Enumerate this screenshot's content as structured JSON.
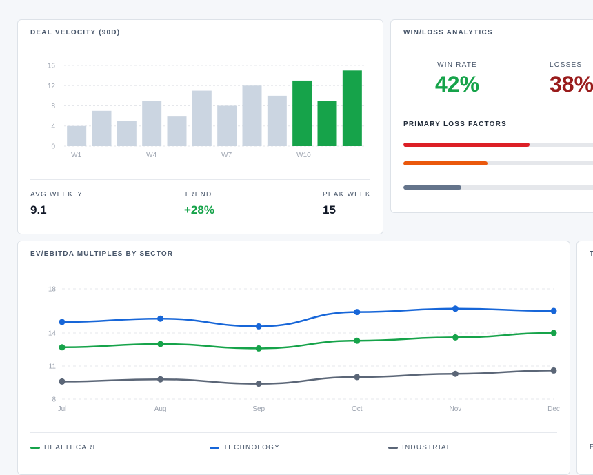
{
  "deal_velocity": {
    "title": "DEAL VELOCITY (90D)",
    "stats": {
      "avg_weekly_label": "AVG WEEKLY",
      "avg_weekly_value": "9.1",
      "trend_label": "TREND",
      "trend_value": "+28%",
      "peak_week_label": "PEAK WEEK",
      "peak_week_value": "15"
    }
  },
  "win_loss": {
    "title": "WIN/LOSS ANALYTICS",
    "win_rate_label": "WIN RATE",
    "win_rate_value": "42%",
    "losses_label": "LOSSES",
    "losses_value": "38%",
    "factors_title": "PRIMARY LOSS FACTORS",
    "factors": [
      {
        "fill_fraction": 0.63,
        "color": "#dc1f26"
      },
      {
        "fill_fraction": 0.42,
        "color": "#ea580c"
      },
      {
        "fill_fraction": 0.29,
        "color": "#64748b"
      }
    ]
  },
  "ev_ebitda": {
    "title": "EV/EBITDA MULTIPLES BY SECTOR",
    "legend": {
      "healthcare": "HEALTHCARE",
      "technology": "TECHNOLOGY",
      "industrial": "INDUSTRIAL"
    }
  },
  "right_edge_card": {
    "header_letter": "T",
    "footer_letter": "F"
  },
  "colors": {
    "accent_green": "#16a34a",
    "accent_red": "#991b1b",
    "bar_gray": "#cbd5e1",
    "technology": "#1766d8",
    "healthcare": "#16a34a",
    "industrial": "#5b6677"
  },
  "chart_data": [
    {
      "type": "bar",
      "categories": [
        "W1",
        "W2",
        "W3",
        "W4",
        "W5",
        "W6",
        "W7",
        "W8",
        "W9",
        "W10",
        "W11",
        "W12"
      ],
      "tick_labels": {
        "W1": "W1",
        "W4": "W4",
        "W7": "W7",
        "W10": "W10"
      },
      "values": [
        4,
        7,
        5,
        9,
        6,
        11,
        8,
        12,
        10,
        13,
        9,
        15
      ],
      "highlight_from_index": 9,
      "y_ticks": [
        "0",
        "4",
        "8",
        "12",
        "16"
      ],
      "ylim": [
        0,
        16
      ],
      "grid": true
    },
    {
      "type": "line",
      "x": [
        "Jul",
        "Aug",
        "Sep",
        "Oct",
        "Nov",
        "Dec"
      ],
      "y_ticks": [
        "8",
        "11",
        "14",
        "18"
      ],
      "ylim": [
        8,
        18
      ],
      "grid": true,
      "legend_placement": "bottom",
      "series": [
        {
          "name": "TECHNOLOGY",
          "color": "#1766d8",
          "values": [
            15.0,
            15.3,
            14.6,
            15.9,
            16.2,
            16.0
          ]
        },
        {
          "name": "HEALTHCARE",
          "color": "#16a34a",
          "values": [
            12.7,
            13.0,
            12.6,
            13.3,
            13.6,
            14.0
          ]
        },
        {
          "name": "INDUSTRIAL",
          "color": "#5b6677",
          "values": [
            9.6,
            9.8,
            9.4,
            10.0,
            10.3,
            10.6
          ]
        }
      ]
    }
  ]
}
